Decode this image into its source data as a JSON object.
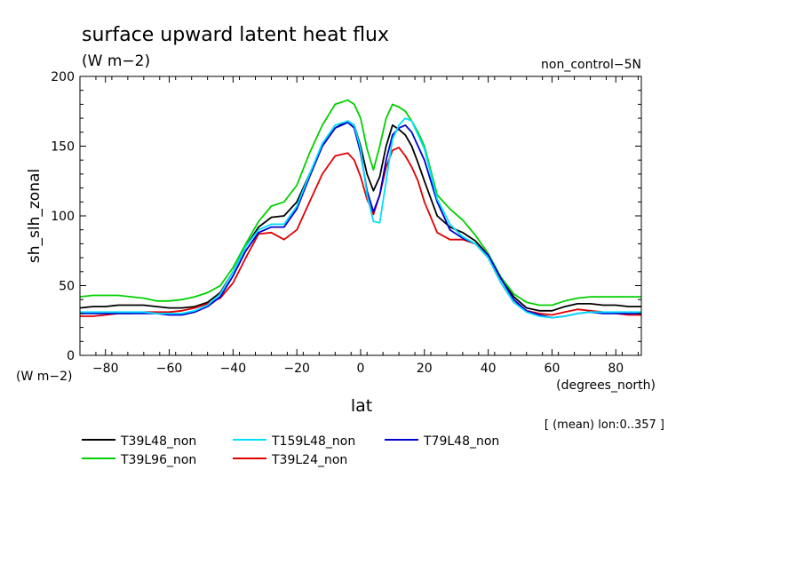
{
  "chart_data": {
    "type": "line",
    "title": "surface upward latent heat flux",
    "subtitle": "(W m−2)",
    "run_label": "non_control−5N",
    "ylabel": "sh_slh_zonal",
    "y_unit_label": "(W m−2)",
    "xlabel": "lat",
    "x_unit_label": "(degrees_north)",
    "footnote": "[ (mean) lon:0..357 ]",
    "xlim": [
      -88,
      88
    ],
    "ylim": [
      0,
      200
    ],
    "x_ticks": [
      -80,
      -60,
      -40,
      -20,
      0,
      20,
      40,
      60,
      80
    ],
    "x_tick_labels": [
      "−80",
      "−60",
      "−40",
      "−20",
      "0",
      "20",
      "40",
      "60",
      "80"
    ],
    "y_ticks": [
      0,
      50,
      100,
      150,
      200
    ],
    "y_tick_labels": [
      "0",
      "50",
      "100",
      "150",
      "200"
    ],
    "x": [
      -88,
      -84,
      -80,
      -76,
      -72,
      -68,
      -64,
      -60,
      -56,
      -52,
      -48,
      -44,
      -40,
      -36,
      -32,
      -28,
      -24,
      -20,
      -16,
      -12,
      -8,
      -4,
      -2,
      0,
      2,
      4,
      6,
      8,
      10,
      12,
      14,
      16,
      18,
      20,
      24,
      28,
      32,
      36,
      40,
      44,
      48,
      52,
      56,
      60,
      64,
      68,
      72,
      76,
      80,
      84,
      88
    ],
    "series": [
      {
        "name": "T39L48_non",
        "color": "#000000",
        "values": [
          34,
          35,
          35,
          36,
          36,
          36,
          35,
          34,
          34,
          35,
          38,
          45,
          60,
          78,
          92,
          99,
          100,
          110,
          130,
          150,
          163,
          168,
          165,
          150,
          130,
          118,
          128,
          150,
          165,
          162,
          158,
          150,
          138,
          125,
          100,
          92,
          88,
          82,
          72,
          55,
          42,
          34,
          32,
          32,
          35,
          37,
          37,
          36,
          36,
          35,
          35
        ]
      },
      {
        "name": "T39L24_non",
        "color": "#e00000",
        "values": [
          28,
          28,
          29,
          30,
          30,
          31,
          31,
          31,
          32,
          34,
          37,
          41,
          52,
          70,
          87,
          88,
          83,
          90,
          110,
          130,
          143,
          145,
          140,
          128,
          112,
          101,
          115,
          135,
          147,
          149,
          143,
          135,
          125,
          110,
          88,
          83,
          83,
          80,
          70,
          52,
          38,
          32,
          30,
          29,
          31,
          33,
          32,
          31,
          30,
          29,
          29
        ]
      },
      {
        "name": "T39L96_non",
        "color": "#00d000",
        "values": [
          42,
          43,
          43,
          43,
          42,
          41,
          39,
          39,
          40,
          42,
          45,
          50,
          63,
          80,
          96,
          107,
          110,
          122,
          145,
          165,
          180,
          183,
          180,
          170,
          148,
          133,
          150,
          170,
          180,
          178,
          175,
          168,
          160,
          150,
          115,
          105,
          97,
          86,
          73,
          56,
          44,
          38,
          36,
          36,
          39,
          41,
          42,
          42,
          42,
          42,
          42
        ]
      },
      {
        "name": "T79L48_non",
        "color": "#0000d0",
        "values": [
          30,
          30,
          30,
          30,
          30,
          30,
          30,
          29,
          29,
          31,
          35,
          42,
          57,
          75,
          88,
          92,
          92,
          105,
          128,
          150,
          163,
          167,
          163,
          145,
          118,
          103,
          115,
          140,
          158,
          163,
          165,
          160,
          150,
          140,
          110,
          90,
          84,
          80,
          72,
          55,
          40,
          32,
          29,
          27,
          28,
          30,
          31,
          30,
          30,
          30,
          30
        ]
      },
      {
        "name": "T159L48_non",
        "color": "#00e0ff",
        "values": [
          31,
          31,
          31,
          31,
          31,
          31,
          30,
          30,
          30,
          32,
          36,
          44,
          60,
          78,
          90,
          94,
          94,
          107,
          130,
          152,
          165,
          168,
          165,
          148,
          115,
          96,
          95,
          125,
          155,
          165,
          170,
          168,
          158,
          148,
          112,
          94,
          85,
          80,
          70,
          52,
          38,
          31,
          28,
          27,
          28,
          30,
          31,
          31,
          31,
          31,
          31
        ]
      }
    ],
    "legend_order": [
      0,
      2,
      4,
      1,
      3
    ],
    "legend_placement": "bottom-left",
    "grid": false
  }
}
